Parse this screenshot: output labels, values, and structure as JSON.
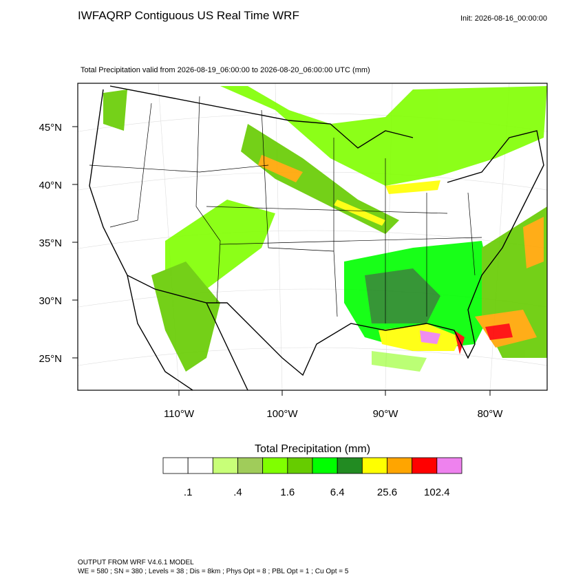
{
  "header": {
    "title": "IWFAQRP Contiguous US Real Time WRF",
    "init": "Init: 2026-08-16_00:00:00"
  },
  "map": {
    "subtitle": "Total Precipitation valid from 2026-08-19_06:00:00 to 2026-08-20_06:00:00 UTC   (mm)",
    "lat_labels": [
      "45°N",
      "40°N",
      "35°N",
      "30°N",
      "25°N"
    ],
    "lon_labels": [
      "110°W",
      "100°W",
      "90°W",
      "80°W"
    ]
  },
  "colorbar": {
    "title": "Total Precipitation  (mm)",
    "colors": [
      "#ffffff",
      "#ffffff",
      "#c8ff78",
      "#a0cc5a",
      "#80ff00",
      "#66cc00",
      "#00ff00",
      "#228b22",
      "#ffff00",
      "#ffa500",
      "#ff0000",
      "#ee82ee"
    ],
    "labels": [
      ".1",
      ".4",
      "1.6",
      "6.4",
      "25.6",
      "102.4"
    ]
  },
  "footer": {
    "line1": "OUTPUT FROM WRF V4.6.1 MODEL",
    "line2": "WE = 580 ; SN = 380 ; Levels = 38 ; Dis = 8km ; Phys Opt = 8 ; PBL Opt = 1 ; Cu Opt = 5"
  }
}
